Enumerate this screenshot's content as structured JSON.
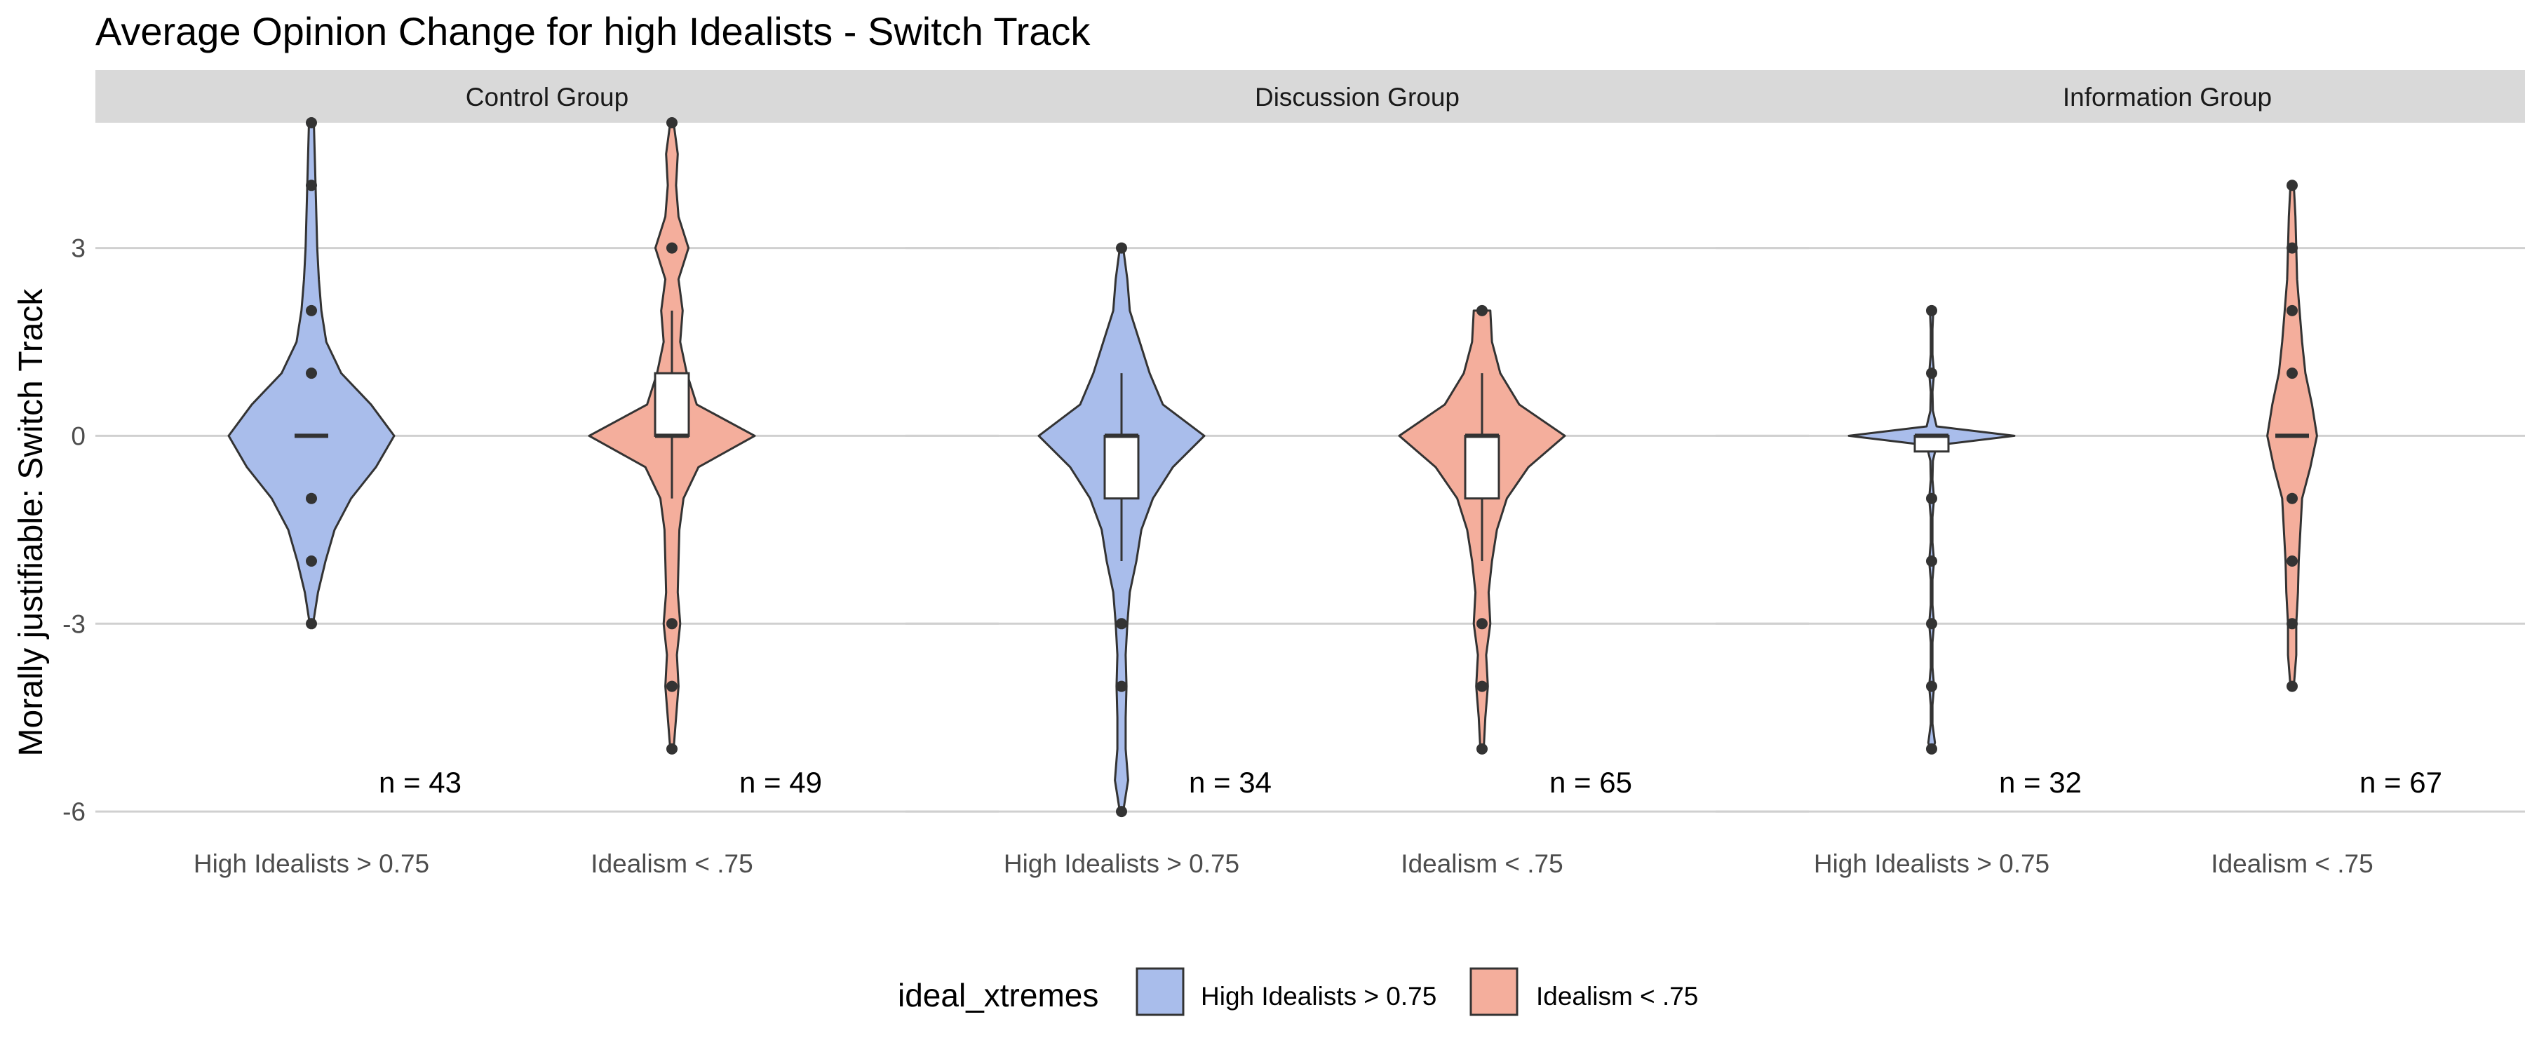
{
  "chart_data": {
    "type": "violin",
    "title": "Average Opinion Change for high Idealists - Switch Track",
    "ylabel": "Morally justifiable: Switch Track",
    "xlabel": "",
    "ylim": [
      -6.2,
      5.0
    ],
    "yticks": [
      -6,
      -3,
      0,
      3
    ],
    "grid": "horizontal",
    "legend": {
      "title": "ideal_xtremes",
      "position": "bottom",
      "entries": [
        {
          "label": "High Idealists > 0.75",
          "color": "#a9bdeb"
        },
        {
          "label": "Idealism < .75",
          "color": "#f4ae9c"
        }
      ]
    },
    "categories": [
      "High Idealists > 0.75",
      "Idealism < .75"
    ],
    "panels": [
      {
        "name": "Control Group",
        "groups": [
          {
            "category": "High Idealists > 0.75",
            "n_label": "n = 43",
            "violin": [
              [
                -3,
                0.02
              ],
              [
                -2.5,
                0.08
              ],
              [
                -2,
                0.17
              ],
              [
                -1.5,
                0.28
              ],
              [
                -1,
                0.48
              ],
              [
                -0.5,
                0.78
              ],
              [
                0,
                1.0
              ],
              [
                0.5,
                0.72
              ],
              [
                1,
                0.36
              ],
              [
                1.5,
                0.18
              ],
              [
                2,
                0.12
              ],
              [
                2.5,
                0.09
              ],
              [
                3,
                0.07
              ],
              [
                3.5,
                0.06
              ],
              [
                4,
                0.05
              ],
              [
                4.5,
                0.04
              ],
              [
                5,
                0.03
              ]
            ],
            "box": {
              "q1": 0,
              "median": 0,
              "q3": 0,
              "lower": 0,
              "upper": 0
            },
            "outliers": [
              5,
              4,
              2,
              1,
              -1,
              -2,
              -3
            ]
          },
          {
            "category": "Idealism < .75",
            "n_label": "n = 49",
            "violin": [
              [
                -5,
                0.02
              ],
              [
                -4.5,
                0.05
              ],
              [
                -4,
                0.08
              ],
              [
                -3.5,
                0.06
              ],
              [
                -3,
                0.1
              ],
              [
                -2.5,
                0.07
              ],
              [
                -2,
                0.08
              ],
              [
                -1.5,
                0.09
              ],
              [
                -1,
                0.14
              ],
              [
                -0.5,
                0.32
              ],
              [
                0,
                1.0
              ],
              [
                0.5,
                0.3
              ],
              [
                1,
                0.18
              ],
              [
                1.5,
                0.1
              ],
              [
                2,
                0.13
              ],
              [
                2.5,
                0.08
              ],
              [
                3,
                0.2
              ],
              [
                3.5,
                0.08
              ],
              [
                4,
                0.05
              ],
              [
                4.5,
                0.07
              ],
              [
                5,
                0.02
              ]
            ],
            "box": {
              "q1": 0,
              "median": 0,
              "q3": 1,
              "lower": -1,
              "upper": 2
            },
            "outliers": [
              5,
              3,
              -3,
              -4,
              -5
            ]
          }
        ]
      },
      {
        "name": "Discussion Group",
        "groups": [
          {
            "category": "High Idealists > 0.75",
            "n_label": "n = 34",
            "violin": [
              [
                -6,
                0.02
              ],
              [
                -5.5,
                0.08
              ],
              [
                -5,
                0.05
              ],
              [
                -4.5,
                0.05
              ],
              [
                -4,
                0.06
              ],
              [
                -3.5,
                0.05
              ],
              [
                -3,
                0.07
              ],
              [
                -2.5,
                0.1
              ],
              [
                -2,
                0.18
              ],
              [
                -1.5,
                0.24
              ],
              [
                -1,
                0.38
              ],
              [
                -0.5,
                0.62
              ],
              [
                0,
                1.0
              ],
              [
                0.5,
                0.5
              ],
              [
                1,
                0.34
              ],
              [
                1.5,
                0.22
              ],
              [
                2,
                0.1
              ],
              [
                2.5,
                0.07
              ],
              [
                3,
                0.02
              ]
            ],
            "box": {
              "q1": -1,
              "median": 0,
              "q3": 0,
              "lower": -2,
              "upper": 1
            },
            "outliers": [
              3,
              -3,
              -4,
              -6
            ]
          },
          {
            "category": "Idealism < .75",
            "n_label": "n = 65",
            "violin": [
              [
                -5,
                0.02
              ],
              [
                -4.5,
                0.04
              ],
              [
                -4,
                0.07
              ],
              [
                -3.5,
                0.05
              ],
              [
                -3,
                0.1
              ],
              [
                -2.5,
                0.08
              ],
              [
                -2,
                0.12
              ],
              [
                -1.5,
                0.18
              ],
              [
                -1,
                0.3
              ],
              [
                -0.5,
                0.56
              ],
              [
                0,
                1.0
              ],
              [
                0.5,
                0.45
              ],
              [
                1,
                0.22
              ],
              [
                1.5,
                0.12
              ],
              [
                2,
                0.1
              ]
            ],
            "box": {
              "q1": -1,
              "median": 0,
              "q3": 0,
              "lower": -2,
              "upper": 1
            },
            "outliers": [
              2,
              -3,
              -4,
              -5
            ]
          }
        ]
      },
      {
        "name": "Information Group",
        "groups": [
          {
            "category": "High Idealists > 0.75",
            "n_label": "n = 32",
            "violin": [
              [
                -5,
                0.02
              ],
              [
                -4.9,
                0.04
              ],
              [
                -4.6,
                0.01
              ],
              [
                -4.3,
                0.01
              ],
              [
                -4,
                0.03
              ],
              [
                -3.7,
                0.01
              ],
              [
                -3.3,
                0.01
              ],
              [
                -3,
                0.03
              ],
              [
                -2.7,
                0.01
              ],
              [
                -2.3,
                0.01
              ],
              [
                -2,
                0.03
              ],
              [
                -1.7,
                0.01
              ],
              [
                -1.3,
                0.01
              ],
              [
                -1,
                0.03
              ],
              [
                -0.7,
                0.01
              ],
              [
                -0.4,
                0.015
              ],
              [
                -0.15,
                0.06
              ],
              [
                0,
                1.0
              ],
              [
                0.15,
                0.06
              ],
              [
                0.4,
                0.015
              ],
              [
                0.7,
                0.01
              ],
              [
                1,
                0.03
              ],
              [
                1.3,
                0.01
              ],
              [
                1.7,
                0.01
              ],
              [
                2,
                0.02
              ]
            ],
            "box": {
              "q1": -0.25,
              "median": 0,
              "q3": 0,
              "lower": -0.25,
              "upper": 0
            },
            "outliers": [
              2,
              1,
              -1,
              -2,
              -3,
              -4,
              -5
            ]
          },
          {
            "category": "Idealism < .75",
            "n_label": "n = 67",
            "violin": [
              [
                -4,
                0.02
              ],
              [
                -3.5,
                0.05
              ],
              [
                -3,
                0.05
              ],
              [
                -2.5,
                0.07
              ],
              [
                -2,
                0.08
              ],
              [
                -1.5,
                0.1
              ],
              [
                -1,
                0.12
              ],
              [
                -0.5,
                0.22
              ],
              [
                0,
                0.3
              ],
              [
                0.5,
                0.24
              ],
              [
                1,
                0.16
              ],
              [
                1.5,
                0.12
              ],
              [
                2,
                0.09
              ],
              [
                2.5,
                0.06
              ],
              [
                3,
                0.05
              ],
              [
                3.5,
                0.04
              ],
              [
                4,
                0.02
              ]
            ],
            "box": {
              "q1": 0,
              "median": 0,
              "q3": 0,
              "lower": 0,
              "upper": 0
            },
            "outliers": [
              4,
              3,
              2,
              1,
              -1,
              -2,
              -3,
              -4
            ]
          }
        ]
      }
    ]
  }
}
